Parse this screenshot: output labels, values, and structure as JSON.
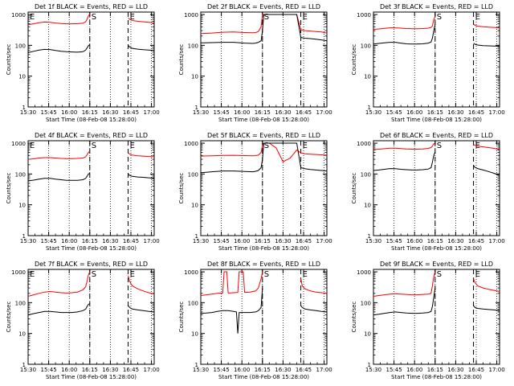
{
  "figure": {
    "xlabel": "Start Time (08-Feb-08 15:28:00)",
    "ylabel": "Counts/sec"
  },
  "style": {
    "events_color": "#000000",
    "lld_color": "#ff0000",
    "axis_color": "#000000"
  },
  "x_tick_labels": [
    "15:30",
    "15:45",
    "16:00",
    "16:15",
    "16:30",
    "16:45",
    "17:00"
  ],
  "y_tick_labels": [
    "1",
    "10",
    "100",
    "1000"
  ],
  "chart_data": [
    {
      "type": "line",
      "title": "Det 1f BLACK = Events, RED = LLD",
      "yscale": "log",
      "ylim": [
        1,
        1200
      ],
      "markers": [
        {
          "label": "E",
          "t": 0
        },
        {
          "label": "S",
          "t": 45
        },
        {
          "label": "E",
          "t": 73
        }
      ],
      "series": [
        {
          "name": "Events",
          "t": [
            0,
            4,
            8,
            12,
            16,
            20,
            24,
            28,
            32,
            36,
            40,
            42,
            43,
            44,
            45,
            45,
            73,
            73,
            74,
            76,
            80,
            84,
            88,
            92
          ],
          "values": [
            58,
            64,
            70,
            74,
            73,
            68,
            64,
            62,
            61,
            60,
            62,
            70,
            82,
            98,
            105,
            null,
            null,
            100,
            88,
            80,
            75,
            72,
            70,
            68
          ]
        },
        {
          "name": "LLD",
          "t": [
            0,
            4,
            8,
            12,
            16,
            20,
            24,
            28,
            32,
            36,
            40,
            42,
            43,
            44,
            45,
            45,
            73,
            73,
            74,
            76,
            80,
            84,
            88,
            92
          ],
          "values": [
            470,
            500,
            540,
            570,
            560,
            530,
            510,
            500,
            500,
            505,
            520,
            580,
            700,
            900,
            1050,
            null,
            null,
            780,
            700,
            640,
            600,
            580,
            560,
            540
          ]
        }
      ]
    },
    {
      "type": "line",
      "title": "Det 2f BLACK = Events, RED = LLD",
      "yscale": "log",
      "ylim": [
        1,
        1200
      ],
      "markers": [
        {
          "label": "S",
          "t": 45
        },
        {
          "label": "E",
          "t": 73
        }
      ],
      "series": [
        {
          "name": "Events",
          "t": [
            0,
            8,
            16,
            24,
            32,
            38,
            40,
            42,
            44,
            45,
            46,
            48,
            50,
            55,
            60,
            65,
            70,
            73,
            76,
            80,
            84,
            88,
            92
          ],
          "values": [
            120,
            122,
            125,
            125,
            118,
            115,
            118,
            125,
            140,
            300,
            1000,
            1000,
            1000,
            1000,
            1000,
            1000,
            1000,
            180,
            170,
            165,
            158,
            150,
            140
          ]
        },
        {
          "name": "LLD",
          "t": [
            0,
            8,
            16,
            24,
            32,
            38,
            40,
            42,
            44,
            45,
            46,
            48,
            50,
            55,
            60,
            65,
            70,
            73,
            76,
            80,
            84,
            88,
            92
          ],
          "values": [
            240,
            250,
            265,
            270,
            260,
            255,
            260,
            280,
            400,
            1000,
            1000,
            1000,
            1000,
            1000,
            1000,
            1000,
            1000,
            320,
            300,
            290,
            280,
            270,
            250
          ]
        }
      ]
    },
    {
      "type": "line",
      "title": "Det 3f BLACK = Events, RED = LLD",
      "yscale": "log",
      "ylim": [
        1,
        1200
      ],
      "markers": [
        {
          "label": "S",
          "t": 45
        },
        {
          "label": "E",
          "t": 73
        }
      ],
      "series": [
        {
          "name": "Events",
          "t": [
            0,
            4,
            8,
            12,
            16,
            20,
            24,
            28,
            32,
            36,
            40,
            42,
            43,
            44,
            45,
            45,
            73,
            73,
            74,
            76,
            80,
            84,
            88,
            92
          ],
          "values": [
            110,
            115,
            120,
            125,
            125,
            118,
            112,
            110,
            110,
            112,
            118,
            128,
            170,
            300,
            470,
            null,
            null,
            118,
            108,
            102,
            98,
            96,
            95,
            94
          ]
        },
        {
          "name": "LLD",
          "t": [
            0,
            4,
            8,
            12,
            16,
            20,
            24,
            28,
            32,
            36,
            40,
            42,
            43,
            44,
            45,
            45,
            73,
            73,
            74,
            76,
            80,
            84,
            88,
            92
          ],
          "values": [
            330,
            340,
            355,
            370,
            370,
            360,
            350,
            345,
            345,
            350,
            360,
            380,
            420,
            700,
            850,
            null,
            null,
            480,
            450,
            420,
            400,
            390,
            380,
            370
          ]
        }
      ]
    },
    {
      "type": "line",
      "title": "Det 4f BLACK = Events, RED = LLD",
      "yscale": "log",
      "ylim": [
        1,
        1200
      ],
      "markers": [
        {
          "label": "E",
          "t": 0
        },
        {
          "label": "S",
          "t": 45
        },
        {
          "label": "E",
          "t": 73
        }
      ],
      "series": [
        {
          "name": "Events",
          "t": [
            0,
            4,
            8,
            12,
            16,
            20,
            24,
            28,
            32,
            36,
            40,
            42,
            43,
            44,
            45,
            45,
            73,
            73,
            74,
            76,
            80,
            84,
            88,
            92
          ],
          "values": [
            60,
            63,
            68,
            72,
            72,
            68,
            65,
            62,
            62,
            62,
            65,
            72,
            85,
            100,
            105,
            null,
            null,
            100,
            90,
            84,
            80,
            78,
            75,
            72
          ]
        },
        {
          "name": "LLD",
          "t": [
            0,
            4,
            8,
            12,
            16,
            20,
            24,
            28,
            32,
            36,
            40,
            42,
            43,
            44,
            45,
            45,
            73,
            73,
            74,
            76,
            80,
            84,
            88,
            92
          ],
          "values": [
            300,
            310,
            330,
            340,
            340,
            330,
            320,
            315,
            315,
            320,
            330,
            360,
            420,
            500,
            550,
            null,
            null,
            480,
            440,
            410,
            390,
            380,
            370,
            360
          ]
        }
      ]
    },
    {
      "type": "line",
      "title": "Det 5f BLACK = Events, RED = LLD",
      "yscale": "log",
      "ylim": [
        1,
        1200
      ],
      "markers": [
        {
          "label": "S",
          "t": 45
        },
        {
          "label": "E",
          "t": 73
        }
      ],
      "series": [
        {
          "name": "Events",
          "t": [
            0,
            8,
            16,
            24,
            32,
            38,
            40,
            42,
            44,
            45,
            46,
            48,
            50,
            55,
            60,
            65,
            70,
            73,
            76,
            80,
            84,
            88,
            92
          ],
          "values": [
            110,
            118,
            125,
            125,
            120,
            118,
            122,
            130,
            160,
            300,
            1000,
            1000,
            1000,
            1000,
            1000,
            1000,
            1000,
            160,
            148,
            140,
            135,
            130,
            125
          ]
        },
        {
          "name": "LLD",
          "t": [
            0,
            8,
            16,
            24,
            32,
            38,
            40,
            42,
            44,
            45,
            46,
            48,
            50,
            55,
            60,
            65,
            70,
            73,
            76,
            80,
            84,
            88,
            92
          ],
          "values": [
            380,
            390,
            400,
            405,
            395,
            390,
            395,
            410,
            500,
            850,
            1000,
            1000,
            1000,
            700,
            250,
            320,
            600,
            480,
            450,
            440,
            430,
            420,
            410
          ]
        }
      ]
    },
    {
      "type": "line",
      "title": "Det 6f BLACK = Events, RED = LLD",
      "yscale": "log",
      "ylim": [
        1,
        1200
      ],
      "markers": [
        {
          "label": "S",
          "t": 45
        },
        {
          "label": "E",
          "t": 73
        }
      ],
      "series": [
        {
          "name": "Events",
          "t": [
            0,
            4,
            8,
            12,
            16,
            20,
            24,
            28,
            32,
            36,
            40,
            42,
            43,
            44,
            45,
            45,
            73,
            73,
            74,
            76,
            80,
            84,
            88,
            92
          ],
          "values": [
            130,
            135,
            142,
            150,
            148,
            142,
            138,
            135,
            135,
            138,
            145,
            160,
            240,
            400,
            520,
            null,
            null,
            190,
            165,
            150,
            135,
            120,
            105,
            90
          ]
        },
        {
          "name": "LLD",
          "t": [
            0,
            4,
            8,
            12,
            16,
            20,
            24,
            28,
            32,
            36,
            40,
            42,
            43,
            44,
            45,
            45,
            73,
            73,
            74,
            76,
            80,
            84,
            88,
            92
          ],
          "values": [
            620,
            640,
            660,
            690,
            690,
            670,
            650,
            640,
            640,
            650,
            680,
            720,
            800,
            950,
            1000,
            null,
            null,
            900,
            850,
            800,
            760,
            720,
            680,
            620
          ]
        }
      ]
    },
    {
      "type": "line",
      "title": "Det 7f BLACK = Events, RED = LLD",
      "yscale": "log",
      "ylim": [
        1,
        1200
      ],
      "markers": [
        {
          "label": "E",
          "t": 0
        },
        {
          "label": "S",
          "t": 45
        },
        {
          "label": "E",
          "t": 73
        }
      ],
      "series": [
        {
          "name": "Events",
          "t": [
            0,
            4,
            8,
            12,
            16,
            20,
            24,
            28,
            32,
            36,
            40,
            42,
            43,
            44,
            45,
            45,
            73,
            73,
            74,
            76,
            80,
            84,
            88,
            92
          ],
          "values": [
            40,
            44,
            48,
            52,
            52,
            50,
            48,
            48,
            48,
            50,
            55,
            62,
            75,
            88,
            92,
            null,
            null,
            80,
            70,
            62,
            58,
            55,
            52,
            50
          ]
        },
        {
          "name": "LLD",
          "t": [
            0,
            4,
            8,
            12,
            16,
            20,
            24,
            28,
            32,
            36,
            40,
            42,
            43,
            44,
            45,
            45,
            73,
            73,
            74,
            76,
            80,
            84,
            88,
            92
          ],
          "values": [
            160,
            180,
            200,
            220,
            230,
            220,
            210,
            205,
            210,
            220,
            260,
            330,
            500,
            800,
            1000,
            null,
            null,
            750,
            500,
            350,
            280,
            240,
            210,
            190
          ]
        }
      ]
    },
    {
      "type": "line",
      "title": "Det 8f BLACK = Events, RED = LLD",
      "yscale": "log",
      "ylim": [
        1,
        1200
      ],
      "markers": [
        {
          "label": "S",
          "t": 45
        },
        {
          "label": "E",
          "t": 73
        }
      ],
      "series": [
        {
          "name": "Events",
          "t": [
            0,
            4,
            8,
            12,
            16,
            20,
            24,
            26,
            27,
            28,
            32,
            36,
            40,
            42,
            44,
            45,
            45,
            73,
            73,
            74,
            76,
            80,
            84,
            88,
            92
          ],
          "values": [
            45,
            46,
            48,
            52,
            55,
            55,
            52,
            50,
            10,
            48,
            48,
            48,
            50,
            55,
            70,
            300,
            null,
            null,
            80,
            70,
            62,
            58,
            55,
            52,
            50
          ]
        },
        {
          "name": "LLD",
          "t": [
            0,
            4,
            8,
            12,
            16,
            17,
            19,
            20,
            24,
            27,
            28,
            29,
            31,
            32,
            36,
            40,
            42,
            44,
            45,
            45,
            73,
            73,
            74,
            76,
            80,
            84,
            88,
            92
          ],
          "values": [
            170,
            180,
            190,
            200,
            205,
            1000,
            1000,
            205,
            210,
            215,
            1000,
            1000,
            1000,
            215,
            220,
            240,
            300,
            600,
            1000,
            null,
            null,
            600,
            350,
            280,
            240,
            220,
            210,
            200
          ]
        }
      ]
    },
    {
      "type": "line",
      "title": "Det 9f BLACK = Events, RED = LLD",
      "yscale": "log",
      "ylim": [
        1,
        1200
      ],
      "markers": [
        {
          "label": "S",
          "t": 45
        },
        {
          "label": "E",
          "t": 73
        }
      ],
      "series": [
        {
          "name": "Events",
          "t": [
            0,
            4,
            8,
            12,
            16,
            20,
            24,
            28,
            32,
            36,
            40,
            42,
            43,
            44,
            45,
            45,
            73,
            73,
            74,
            76,
            80,
            84,
            88,
            92
          ],
          "values": [
            40,
            42,
            45,
            48,
            50,
            48,
            46,
            45,
            45,
            46,
            48,
            52,
            75,
            150,
            300,
            null,
            null,
            80,
            70,
            65,
            62,
            60,
            58,
            55
          ]
        },
        {
          "name": "LLD",
          "t": [
            0,
            4,
            8,
            12,
            16,
            20,
            24,
            28,
            32,
            36,
            40,
            42,
            43,
            44,
            45,
            45,
            73,
            73,
            74,
            76,
            80,
            84,
            88,
            92
          ],
          "values": [
            160,
            170,
            180,
            190,
            195,
            190,
            185,
            180,
            180,
            185,
            190,
            200,
            350,
            700,
            1000,
            null,
            null,
            600,
            450,
            350,
            300,
            270,
            250,
            230
          ]
        }
      ]
    }
  ]
}
